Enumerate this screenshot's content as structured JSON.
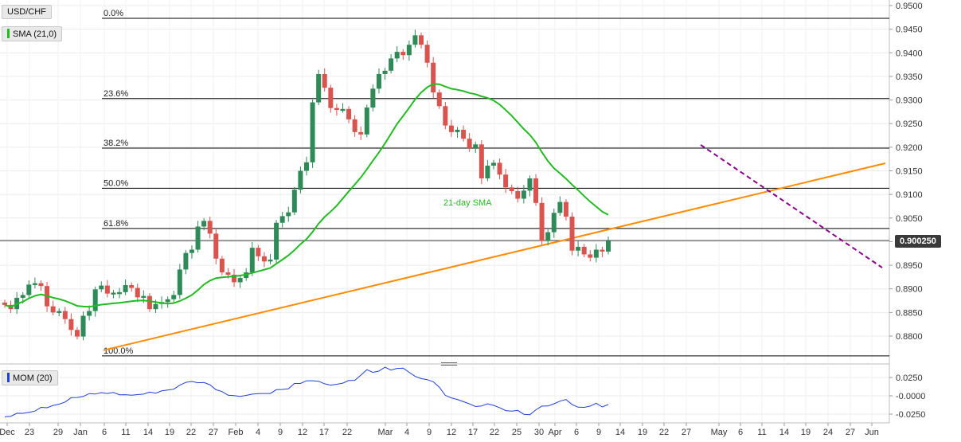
{
  "symbol_label": "USD/CHF",
  "sma_label": "SMA (21,0)",
  "mom_label": "MOM (20)",
  "sma_annotation": "21-day SMA",
  "last_price": "0.900250",
  "colors": {
    "up": "#2e8b57",
    "down": "#d9534f",
    "sma": "#22bb22",
    "support": "#ff8c00",
    "resistance": "#8b008b",
    "fib": "#000000",
    "mom": "#1f3fd9"
  },
  "chart_data": [
    {
      "type": "candlestick",
      "title": "USD/CHF",
      "ylim": [
        0.876,
        0.95
      ],
      "y_ticks": [
        "0.9500",
        "0.9450",
        "0.9400",
        "0.9350",
        "0.9300",
        "0.9250",
        "0.9200",
        "0.9150",
        "0.9100",
        "0.9050",
        "0.9000",
        "0.8950",
        "0.8900",
        "0.8850",
        "0.8800"
      ],
      "x_tick_labels": [
        "Dec",
        "23",
        "29",
        "Jan",
        "6",
        "11",
        "14",
        "19",
        "22",
        "27",
        "Feb",
        "4",
        "9",
        "12",
        "17",
        "22",
        "Mar",
        "4",
        "9",
        "12",
        "17",
        "22",
        "25",
        "30",
        "Apr",
        "6",
        "9",
        "14",
        "19",
        "22",
        "27",
        "May",
        "6",
        "11",
        "14",
        "19",
        "24",
        "27",
        "Jun"
      ],
      "candles_close": [
        0.8866,
        0.8857,
        0.8881,
        0.8887,
        0.8909,
        0.8912,
        0.8906,
        0.8863,
        0.885,
        0.8853,
        0.8836,
        0.8813,
        0.8799,
        0.8843,
        0.8853,
        0.8899,
        0.8907,
        0.889,
        0.8892,
        0.8893,
        0.8908,
        0.8902,
        0.8882,
        0.8885,
        0.8857,
        0.8868,
        0.8872,
        0.8878,
        0.8887,
        0.8941,
        0.8976,
        0.8983,
        0.9032,
        0.9044,
        0.9017,
        0.8964,
        0.8935,
        0.893,
        0.8914,
        0.8923,
        0.8935,
        0.8987,
        0.8969,
        0.8958,
        0.8962,
        0.904,
        0.9054,
        0.9062,
        0.911,
        0.915,
        0.9168,
        0.9295,
        0.9355,
        0.9326,
        0.9283,
        0.9279,
        0.9281,
        0.9259,
        0.9232,
        0.9227,
        0.9284,
        0.9324,
        0.9355,
        0.9362,
        0.9388,
        0.9402,
        0.9395,
        0.9417,
        0.9437,
        0.9417,
        0.9379,
        0.9316,
        0.9287,
        0.9246,
        0.9232,
        0.9237,
        0.9218,
        0.9198,
        0.9206,
        0.9134,
        0.9161,
        0.9167,
        0.9142,
        0.9115,
        0.9107,
        0.9091,
        0.9108,
        0.9134,
        0.9082,
        0.9002,
        0.902,
        0.9061,
        0.9084,
        0.9053,
        0.8981,
        0.8989,
        0.8973,
        0.8966,
        0.8983,
        0.8979,
        0.9002
      ],
      "levels": [
        {
          "label": "0.0%",
          "value": 0.9473
        },
        {
          "label": "23.6%",
          "value": 0.9303
        },
        {
          "label": "38.2%",
          "value": 0.9198
        },
        {
          "label": "50.0%",
          "value": 0.9113
        },
        {
          "label": "61.8%",
          "value": 0.9028
        },
        {
          "label": "100.0%",
          "value": 0.8758
        }
      ],
      "series": [
        {
          "name": "21-day SMA"
        }
      ]
    },
    {
      "type": "line",
      "title": "MOM (20)",
      "ylim": [
        -0.032,
        0.034
      ],
      "y_ticks": [
        "0.0250",
        "-0.0000",
        "-0.0250"
      ],
      "values": [
        -0.0285,
        -0.0279,
        -0.0238,
        -0.0239,
        -0.0226,
        -0.0209,
        -0.0158,
        -0.0163,
        -0.0131,
        -0.0114,
        -0.0085,
        -0.0025,
        -0.0023,
        -0.0009,
        0.003,
        0.0024,
        0.0043,
        0.0031,
        0.0046,
        0.0014,
        0.0015,
        0.0008,
        0.0016,
        0.0023,
        0.0051,
        0.0036,
        0.0067,
        0.0078,
        0.009,
        0.0145,
        0.0184,
        0.0196,
        0.0178,
        0.0181,
        0.0151,
        0.0083,
        0.0058,
        0.0009,
        0.0002,
        -0.0008,
        0.0005,
        0.0023,
        0.0029,
        0.0032,
        0.0032,
        0.0084,
        0.0087,
        0.0097,
        0.0168,
        0.0169,
        0.0205,
        0.0205,
        0.0199,
        0.0164,
        0.0146,
        0.0158,
        0.0173,
        0.0209,
        0.0211,
        0.0282,
        0.0357,
        0.032,
        0.0338,
        0.039,
        0.0351,
        0.0374,
        0.0378,
        0.0321,
        0.0265,
        0.0235,
        0.0221,
        0.0191,
        0.0117,
        0.0007,
        -0.0028,
        -0.005,
        -0.008,
        -0.011,
        -0.0147,
        -0.0139,
        -0.0109,
        -0.013,
        -0.0162,
        -0.0202,
        -0.021,
        -0.0199,
        -0.0252,
        -0.0258,
        -0.0191,
        -0.014,
        -0.0139,
        -0.0109,
        -0.0073,
        -0.0051,
        -0.0119,
        -0.0155,
        -0.0158,
        -0.014,
        -0.0101,
        -0.0152,
        -0.0119
      ]
    }
  ]
}
